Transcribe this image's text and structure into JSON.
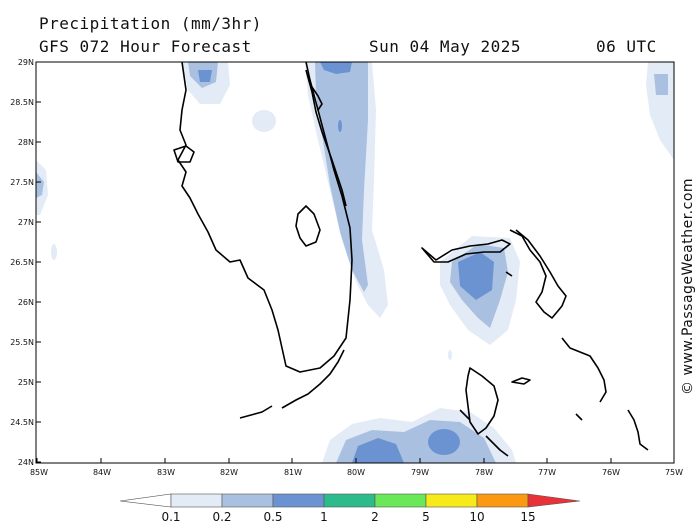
{
  "header": {
    "title": "Precipitation (mm/3hr)",
    "model": "GFS 072 Hour Forecast",
    "date": "Sun 04 May 2025",
    "time": "06 UTC"
  },
  "map": {
    "lat_labels": [
      "29N",
      "28.5N",
      "28N",
      "27.5N",
      "27N",
      "26.5N",
      "26N",
      "25.5N",
      "25N",
      "24.5N",
      "24N"
    ],
    "lon_labels": [
      "85W",
      "84W",
      "83W",
      "82W",
      "81W",
      "80W",
      "79W",
      "78W",
      "77W",
      "76W",
      "75W"
    ],
    "region": "Florida / Bahamas"
  },
  "credit": "© www.PassageWeather.com",
  "colorbar": {
    "levels": [
      "0.1",
      "0.2",
      "0.5",
      "1",
      "2",
      "5",
      "10",
      "15"
    ],
    "colors": [
      "#ffffff",
      "#e3ebf6",
      "#a9c0e0",
      "#6b93d2",
      "#2dbb8c",
      "#6ae85a",
      "#f6ea1a",
      "#fb9a12",
      "#e8323a"
    ]
  }
}
